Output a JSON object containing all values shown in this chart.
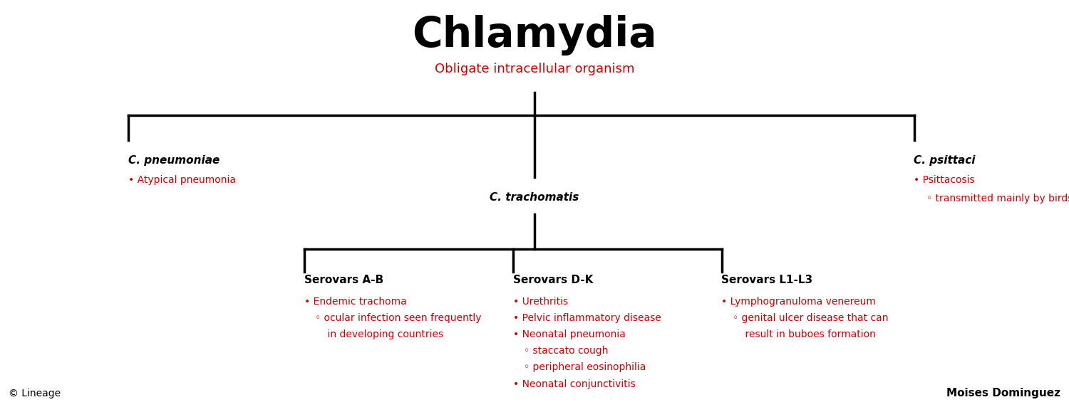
{
  "title": "Chlamydia",
  "subtitle": "Obligate intracellular organism",
  "bg_color": "#ffffff",
  "black": "#000000",
  "red": "#cc0000",
  "footer_left": "© Lineage",
  "footer_right": "Moises Dominguez",
  "fig_w": 15.0,
  "fig_h": 5.79,
  "dpi": 100
}
